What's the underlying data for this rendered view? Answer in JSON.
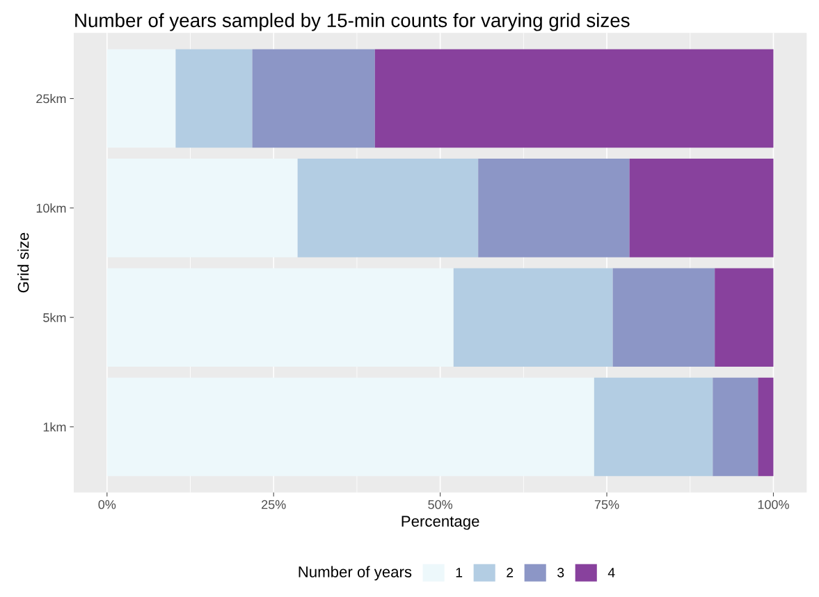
{
  "chart_data": {
    "type": "bar",
    "title": "Number of years sampled by 15-min counts for varying grid sizes",
    "xlabel": "Percentage",
    "ylabel": "Grid size",
    "legend_title": "Number of years",
    "orientation": "horizontal",
    "stacked": true,
    "categories": [
      "25km",
      "10km",
      "5km",
      "1km"
    ],
    "series": [
      {
        "name": "1",
        "color": "#edf8fb",
        "values": [
          10.3,
          28.6,
          52.0,
          73.1
        ]
      },
      {
        "name": "2",
        "color": "#b3cde3",
        "values": [
          11.5,
          27.1,
          23.9,
          17.8
        ]
      },
      {
        "name": "3",
        "color": "#8c96c6",
        "values": [
          18.4,
          22.7,
          15.3,
          6.8
        ]
      },
      {
        "name": "4",
        "color": "#88419d",
        "values": [
          59.8,
          21.6,
          8.8,
          2.3
        ]
      }
    ],
    "xlim": [
      -5,
      105
    ],
    "xticks": [
      {
        "value": 0,
        "label": "0%"
      },
      {
        "value": 25,
        "label": "25%"
      },
      {
        "value": 50,
        "label": "50%"
      },
      {
        "value": 75,
        "label": "75%"
      },
      {
        "value": 100,
        "label": "100%"
      }
    ],
    "grid": true,
    "legend": "bottom"
  }
}
